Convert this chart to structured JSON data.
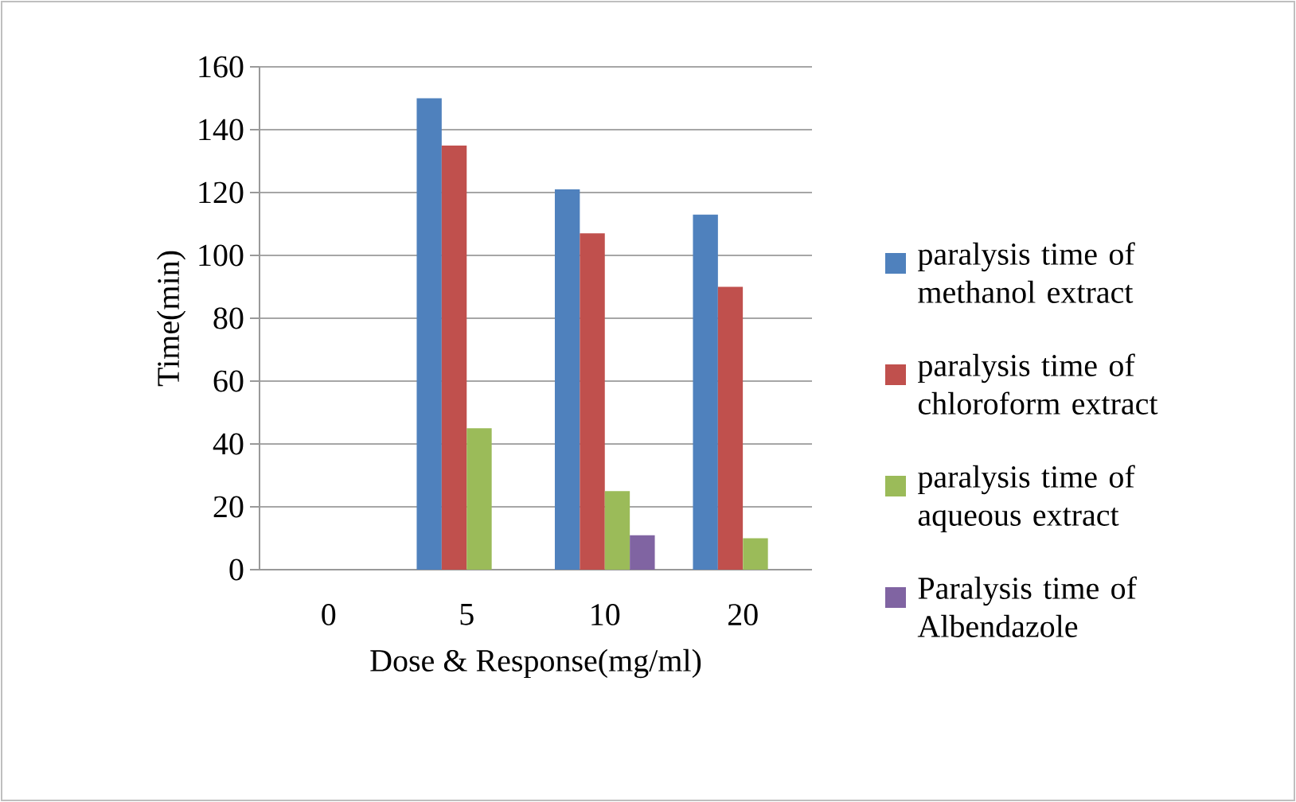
{
  "chart_data": {
    "type": "bar",
    "xlabel": "Dose & Response(mg/ml)",
    "ylabel": "Time(min)",
    "categories": [
      "0",
      "5",
      "10",
      "20"
    ],
    "series": [
      {
        "name": "paralysis time of methanol extract",
        "color": "#4f81bd",
        "values": [
          0,
          150,
          121,
          113
        ]
      },
      {
        "name": "paralysis time of chloroform extract",
        "color": "#c0504d",
        "values": [
          0,
          135,
          107,
          90
        ]
      },
      {
        "name": "paralysis time of aqueous extract",
        "color": "#9bbb59",
        "values": [
          0,
          45,
          25,
          10
        ]
      },
      {
        "name": "Paralysis time of Albendazole",
        "color": "#8064a2",
        "values": [
          0,
          0,
          11,
          0
        ]
      }
    ],
    "ylim": [
      0,
      160
    ],
    "yticks": [
      0,
      20,
      40,
      60,
      80,
      100,
      120,
      140,
      160
    ],
    "grid": "y",
    "legend": "right"
  }
}
